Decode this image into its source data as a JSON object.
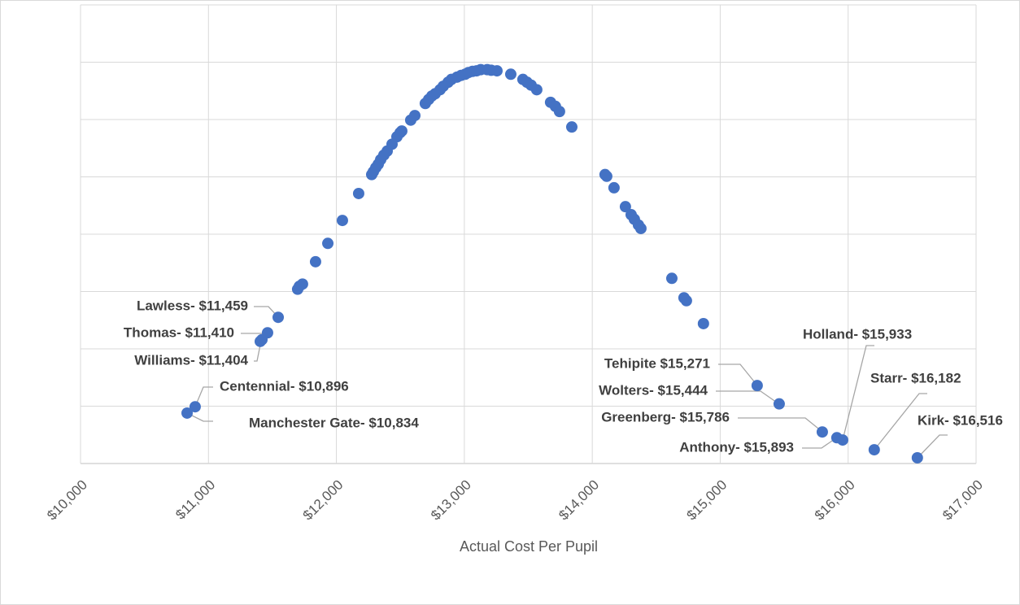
{
  "chart_data": {
    "type": "scatter",
    "x_label": "Actual Cost Per Pupil",
    "color": "#4472c4",
    "grid": true,
    "xlim": [
      10000,
      17000
    ],
    "xticks": [
      {
        "value": 10000,
        "label": "$10,000"
      },
      {
        "value": 11000,
        "label": "$11,000"
      },
      {
        "value": 12000,
        "label": "$12,000"
      },
      {
        "value": 13000,
        "label": "$13,000"
      },
      {
        "value": 14000,
        "label": "$14,000"
      },
      {
        "value": 15000,
        "label": "$15,000"
      },
      {
        "value": 16000,
        "label": "$16,000"
      },
      {
        "value": 17000,
        "label": "$17,000"
      }
    ],
    "ylim": [
      0,
      8
    ],
    "yticks": [
      0,
      1,
      2,
      3,
      4,
      5,
      6,
      7,
      8
    ],
    "x": [
      10833,
      10896,
      11405,
      11418,
      11462,
      11545,
      11697,
      11710,
      11735,
      11837,
      11933,
      12047,
      12174,
      12276,
      12289,
      12308,
      12327,
      12346,
      12371,
      12397,
      12435,
      12473,
      12498,
      12511,
      12581,
      12613,
      12695,
      12721,
      12746,
      12772,
      12810,
      12835,
      12873,
      12899,
      12943,
      12975,
      13007,
      13032,
      13064,
      13096,
      13128,
      13179,
      13210,
      13255,
      13363,
      13458,
      13490,
      13522,
      13566,
      13674,
      13712,
      13744,
      13840,
      14100,
      14113,
      14170,
      14259,
      14304,
      14329,
      14361,
      14380,
      14622,
      14717,
      14736,
      14869,
      15289,
      15461,
      15798,
      15912,
      15957,
      16204,
      16541
    ],
    "values": [
      0.88,
      0.99,
      2.13,
      2.16,
      2.28,
      2.55,
      3.04,
      3.09,
      3.13,
      3.52,
      3.84,
      4.24,
      4.71,
      5.04,
      5.09,
      5.16,
      5.22,
      5.3,
      5.38,
      5.45,
      5.57,
      5.7,
      5.77,
      5.8,
      5.99,
      6.07,
      6.28,
      6.35,
      6.41,
      6.45,
      6.52,
      6.58,
      6.65,
      6.7,
      6.74,
      6.77,
      6.79,
      6.82,
      6.84,
      6.85,
      6.87,
      6.87,
      6.86,
      6.85,
      6.79,
      6.7,
      6.65,
      6.6,
      6.52,
      6.3,
      6.23,
      6.14,
      5.87,
      5.04,
      5.01,
      4.81,
      4.48,
      4.34,
      4.26,
      4.16,
      4.1,
      3.23,
      2.89,
      2.84,
      2.44,
      1.36,
      1.04,
      0.55,
      0.45,
      0.41,
      0.24,
      0.1
    ],
    "annotations": [
      "Lawless- $11,459",
      "Thomas- $11,410",
      "Williams- $11,404",
      "Centennial- $10,896",
      "Manchester Gate- $10,834",
      "Tehipite $15,271",
      "Wolters- $15,444",
      "Greenberg- $15,786",
      "Anthony- $15,893",
      "Holland- $15,933",
      "Starr- $16,182",
      "Kirk- $16,516"
    ]
  }
}
